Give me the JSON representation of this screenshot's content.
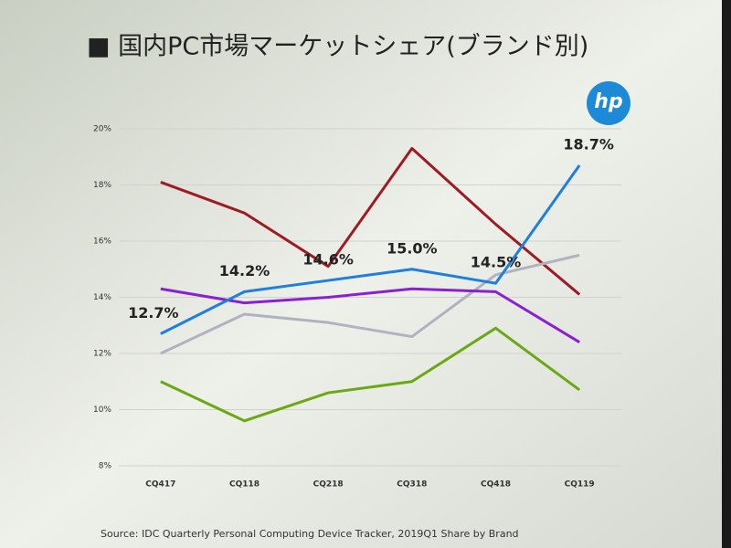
{
  "chart_data": {
    "type": "line",
    "title": "■ 国内PC市場マーケットシェア(ブランド別)",
    "logo": "hp",
    "source": "Source: IDC Quarterly Personal Computing Device Tracker, 2019Q1    Share by Brand",
    "categories": [
      "CQ417",
      "CQ118",
      "CQ218",
      "CQ318",
      "CQ418",
      "CQ119"
    ],
    "ylim": [
      8,
      20
    ],
    "yticks": [
      {
        "value": 8,
        "label": "8%"
      },
      {
        "value": 10,
        "label": "10%"
      },
      {
        "value": 12,
        "label": "12%"
      },
      {
        "value": 14,
        "label": "14%"
      },
      {
        "value": 16,
        "label": "16%"
      },
      {
        "value": 18,
        "label": "18%"
      },
      {
        "value": 20,
        "label": "20%"
      }
    ],
    "grid": true,
    "series": [
      {
        "color": "#9e1b24",
        "values": [
          18.1,
          17.0,
          15.1,
          19.3,
          16.6,
          14.1
        ]
      },
      {
        "color": "#b0b3bf",
        "values": [
          12.0,
          13.4,
          13.1,
          12.6,
          14.8,
          15.5
        ]
      },
      {
        "color": "#8a1fd6",
        "values": [
          14.3,
          13.8,
          14.0,
          14.3,
          14.2,
          12.4
        ]
      },
      {
        "color": "#6aa814",
        "values": [
          11.0,
          9.6,
          10.6,
          11.0,
          12.9,
          10.7
        ]
      },
      {
        "color": "#1e7fe0",
        "values": [
          12.7,
          14.2,
          14.6,
          15.0,
          14.5,
          18.7
        ],
        "value_labels": [
          "12.7%",
          "14.2%",
          "14.6%",
          "15.0%",
          "14.5%",
          "18.7%"
        ]
      }
    ]
  }
}
